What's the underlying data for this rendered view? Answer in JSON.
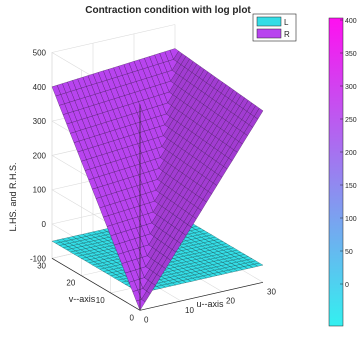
{
  "chart_data": {
    "type": "surface",
    "title": "Contraction condition with log plot",
    "xlabel": "u--axis",
    "ylabel": "v--axis",
    "zlabel": "L.HS. and R.H.S.",
    "xticks": [
      0,
      10,
      20,
      30
    ],
    "yticks": [
      0,
      10,
      20,
      30
    ],
    "zticks": [
      -100,
      0,
      100,
      200,
      300,
      400,
      500
    ],
    "xlim": [
      0,
      30
    ],
    "ylim": [
      0,
      30
    ],
    "zlim": [
      -100,
      500
    ],
    "grid": true,
    "legend_position": "top-right",
    "series": [
      {
        "name": "L",
        "color": "#33dde6",
        "surface": "flat",
        "z_value": -50
      },
      {
        "name": "R",
        "color": "#b844ef",
        "surface": "v-fold",
        "z_apex": -100,
        "z_corner_u0_v30": 400,
        "z_corner_u30_v30": 400,
        "z_corner_u30_v0": 150
      }
    ],
    "colorbar": {
      "ticks": [
        "400",
        "350",
        "300",
        "250",
        "200",
        "150",
        "100",
        "50",
        "0"
      ],
      "colors": [
        "#ff10f0",
        "#33f0f0"
      ]
    }
  }
}
